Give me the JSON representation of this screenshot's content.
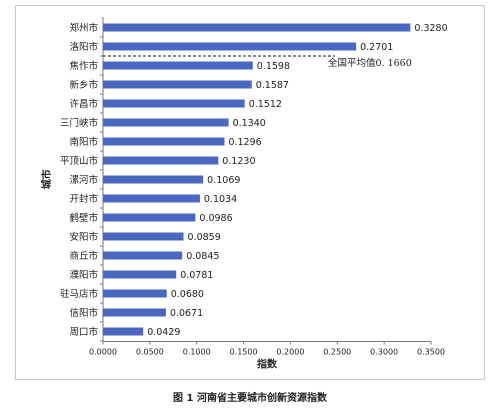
{
  "caption": "图 1 河南省主要城市创新资源指数",
  "chart_data": {
    "type": "bar",
    "orientation": "horizontal",
    "categories": [
      "郑州市",
      "洛阳市",
      "焦作市",
      "新乡市",
      "许昌市",
      "三门峡市",
      "南阳市",
      "平顶山市",
      "漯河市",
      "开封市",
      "鹤壁市",
      "安阳市",
      "商丘市",
      "濮阳市",
      "驻马店市",
      "信阳市",
      "周口市"
    ],
    "values": [
      0.328,
      0.2701,
      0.1598,
      0.1587,
      0.1512,
      0.134,
      0.1296,
      0.123,
      0.1069,
      0.1034,
      0.0986,
      0.0859,
      0.0845,
      0.0781,
      0.068,
      0.0671,
      0.0429
    ],
    "value_labels": [
      "0.3280",
      "0.2701",
      "0.1598",
      "0.1587",
      "0.1512",
      "0.1340",
      "0.1296",
      "0.1230",
      "0.1069",
      "0.1034",
      "0.0986",
      "0.0859",
      "0.0845",
      "0.0781",
      "0.0680",
      "0.0671",
      "0.0429"
    ],
    "xlabel": "指数",
    "ylabel": "城市",
    "xlim": [
      0,
      0.35
    ],
    "xticks": [
      "0.0000",
      "0.0500",
      "0.1000",
      "0.1500",
      "0.2000",
      "0.2500",
      "0.3000",
      "0.3500"
    ],
    "grid": false,
    "bar_color": "#4a68bf",
    "reference_line": {
      "label": "全国平均值0. 1660",
      "value": 0.166,
      "after_category_index": 1,
      "style": "dashed"
    }
  }
}
